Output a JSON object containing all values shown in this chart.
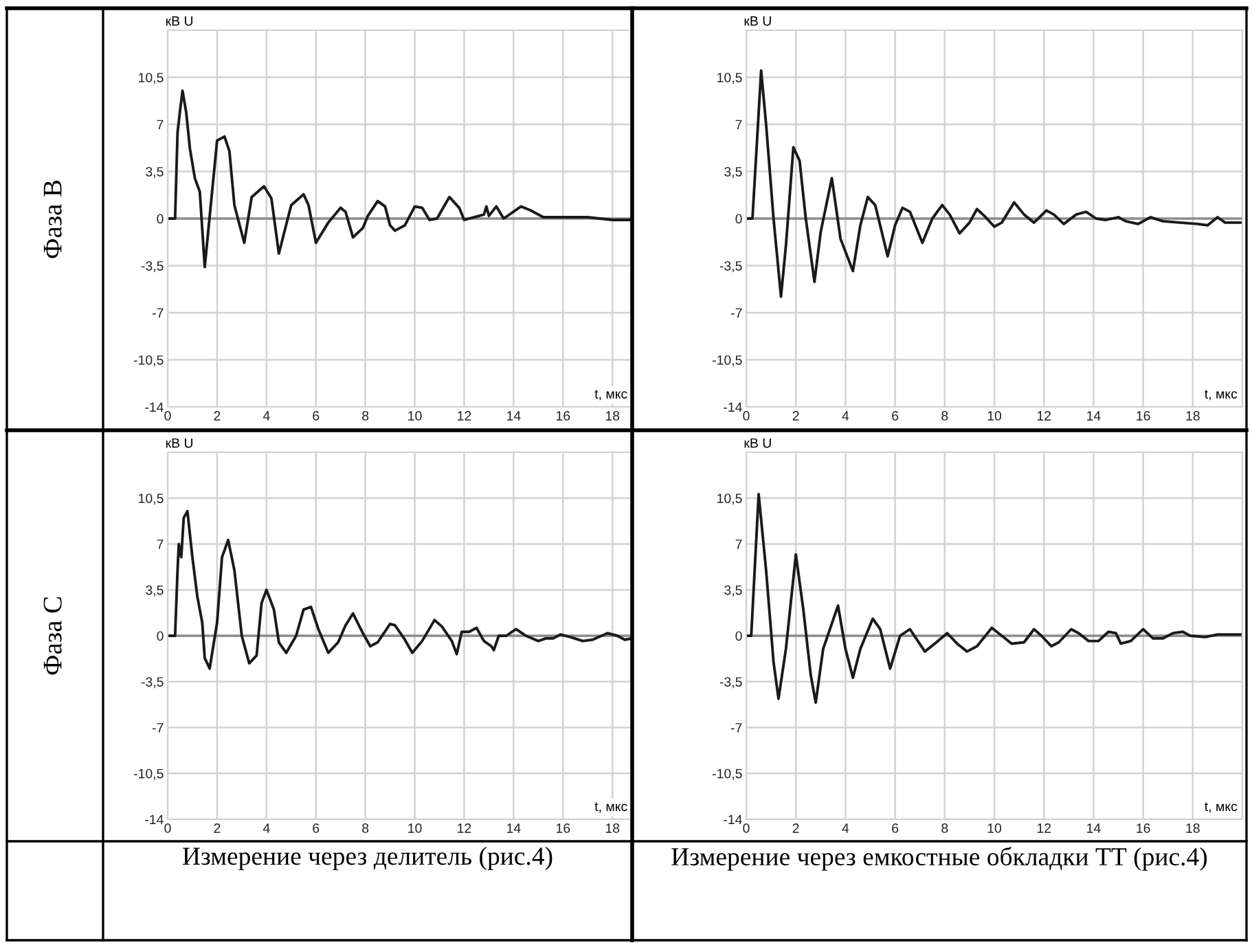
{
  "chart_data": [
    {
      "type": "line",
      "title": "Фаза В",
      "xlabel": "t, мкс",
      "ylabel": "кВ U",
      "color": "#1a1a1a",
      "grid": true,
      "xlim": [
        0,
        18.8
      ],
      "ylim": [
        -14,
        14
      ],
      "xticks": [
        0,
        2,
        4,
        6,
        8,
        10,
        12,
        14,
        16,
        18
      ],
      "yticks": [
        {
          "value": -14,
          "label": "-14"
        },
        {
          "value": -10.5,
          "label": "-10,5"
        },
        {
          "value": -7,
          "label": "-7"
        },
        {
          "value": -3.5,
          "label": "-3,5"
        },
        0,
        {
          "value": 3.5,
          "label": "3,5"
        },
        7,
        {
          "value": 10.5,
          "label": "10,5"
        }
      ],
      "ref_lines": [
        {
          "axis": "y",
          "value": 0,
          "color": "#8c8c8c"
        }
      ],
      "x": [
        0,
        0.3,
        0.4,
        0.5,
        0.6,
        0.75,
        0.9,
        1.1,
        1.3,
        1.5,
        2.0,
        2.3,
        2.5,
        2.7,
        3.1,
        3.4,
        3.9,
        4.2,
        4.5,
        5.0,
        5.5,
        5.7,
        6.0,
        6.5,
        7.0,
        7.2,
        7.5,
        7.9,
        8.1,
        8.5,
        8.8,
        9.0,
        9.2,
        9.6,
        10,
        10.3,
        10.6,
        10.9,
        11.4,
        11.8,
        12.0,
        12.4,
        12.8,
        12.9,
        13.0,
        13.3,
        13.6,
        14.3,
        14.7,
        15.2,
        16,
        17,
        17.5,
        18,
        18.8
      ],
      "values": [
        0,
        0,
        6.4,
        8,
        9.5,
        7.9,
        5.2,
        3,
        2,
        -3.6,
        5.8,
        6.1,
        5,
        1,
        -1.8,
        1.6,
        2.4,
        1.5,
        -2.6,
        1,
        1.8,
        1,
        -1.8,
        -0.3,
        0.8,
        0.5,
        -1.4,
        -0.7,
        0.2,
        1.3,
        0.9,
        -0.5,
        -0.9,
        -0.5,
        0.9,
        0.8,
        -0.1,
        0,
        1.6,
        0.8,
        -0.1,
        0.1,
        0.3,
        0.9,
        0.2,
        0.9,
        0,
        0.9,
        0.6,
        0.1,
        0.1,
        0.1,
        0,
        -0.1,
        -0.1
      ]
    },
    {
      "type": "line",
      "xlabel": "t, мкс",
      "ylabel": "кВ U",
      "color": "#1a1a1a",
      "grid": true,
      "xlim": [
        0,
        20
      ],
      "ylim": [
        -14,
        14
      ],
      "xticks": [
        0,
        2,
        4,
        6,
        8,
        10,
        12,
        14,
        16,
        18,
        {
          "value": 20,
          "label": null
        }
      ],
      "yticks": [
        {
          "value": -14,
          "label": "-14"
        },
        {
          "value": -10.5,
          "label": "-10,5"
        },
        {
          "value": -7,
          "label": "-7"
        },
        {
          "value": -3.5,
          "label": "-3,5"
        },
        0,
        {
          "value": 3.5,
          "label": "3,5"
        },
        7,
        {
          "value": 10.5,
          "label": "10,5"
        }
      ],
      "ref_lines": [
        {
          "axis": "y",
          "value": 0,
          "color": "#8c8c8c"
        }
      ],
      "x": [
        0,
        0.25,
        0.6,
        0.8,
        1.1,
        1.4,
        1.6,
        1.9,
        2.15,
        2.4,
        2.75,
        3.0,
        3.45,
        3.8,
        4.3,
        4.6,
        4.9,
        5.2,
        5.7,
        6.0,
        6.3,
        6.6,
        7.1,
        7.5,
        7.9,
        8.2,
        8.6,
        9.0,
        9.3,
        9.6,
        10.0,
        10.3,
        10.8,
        11.2,
        11.6,
        12.1,
        12.4,
        12.8,
        13.3,
        13.7,
        14.1,
        14.5,
        15.0,
        15.3,
        15.8,
        16.3,
        16.8,
        17.5,
        18.2,
        18.6,
        19.0,
        19.3,
        20
      ],
      "values": [
        0,
        0,
        11,
        7,
        0,
        -5.8,
        -2,
        5.3,
        4.3,
        0,
        -4.7,
        -1,
        3,
        -1.5,
        -3.9,
        -0.5,
        1.6,
        1,
        -2.8,
        -0.5,
        0.8,
        0.5,
        -1.8,
        0,
        1,
        0.3,
        -1.1,
        -0.3,
        0.7,
        0.2,
        -0.6,
        -0.3,
        1.2,
        0.3,
        -0.3,
        0.6,
        0.3,
        -0.4,
        0.3,
        0.5,
        0,
        -0.1,
        0.1,
        -0.2,
        -0.4,
        0.1,
        -0.2,
        -0.3,
        -0.4,
        -0.5,
        0.1,
        -0.3,
        -0.3
      ]
    },
    {
      "type": "line",
      "title": "Фаза С",
      "xlabel": "t, мкс",
      "ylabel": "кВ U",
      "color": "#1a1a1a",
      "grid": true,
      "xlim": [
        0,
        18.8
      ],
      "ylim": [
        -14,
        14
      ],
      "xticks": [
        0,
        2,
        4,
        6,
        8,
        10,
        12,
        14,
        16,
        18
      ],
      "yticks": [
        {
          "value": -14,
          "label": "-14"
        },
        {
          "value": -10.5,
          "label": "-10,5"
        },
        {
          "value": -7,
          "label": "-7"
        },
        {
          "value": -3.5,
          "label": "-3,5"
        },
        0,
        {
          "value": 3.5,
          "label": "3,5"
        },
        7,
        {
          "value": 10.5,
          "label": "10,5"
        }
      ],
      "ref_lines": [
        {
          "axis": "y",
          "value": 0,
          "color": "#8c8c8c"
        }
      ],
      "annotations": [
        "Измерение через делитель (рис.4)"
      ],
      "x": [
        0,
        0.3,
        0.4,
        0.45,
        0.55,
        0.65,
        0.8,
        1.0,
        1.2,
        1.4,
        1.5,
        1.7,
        2.0,
        2.2,
        2.45,
        2.7,
        3.0,
        3.3,
        3.6,
        3.8,
        4.0,
        4.3,
        4.5,
        4.8,
        5.2,
        5.5,
        5.8,
        6.1,
        6.5,
        6.9,
        7.2,
        7.5,
        7.9,
        8.2,
        8.5,
        9.0,
        9.2,
        9.6,
        9.9,
        10.3,
        10.8,
        11.1,
        11.5,
        11.7,
        11.9,
        12.2,
        12.5,
        12.8,
        13.1,
        13.2,
        13.4,
        13.7,
        14.1,
        14.5,
        15.0,
        15.3,
        15.6,
        15.9,
        16.3,
        16.8,
        17.2,
        17.8,
        18.2,
        18.5,
        18.8
      ],
      "values": [
        0,
        0,
        5,
        7,
        6,
        9,
        9.5,
        6,
        3,
        1,
        -1.7,
        -2.5,
        1,
        6,
        7.3,
        5,
        0,
        -2.1,
        -1.5,
        2.5,
        3.5,
        2,
        -0.5,
        -1.3,
        0,
        2,
        2.2,
        0.5,
        -1.3,
        -0.5,
        0.8,
        1.7,
        0.2,
        -0.8,
        -0.5,
        0.9,
        0.8,
        -0.3,
        -1.3,
        -0.4,
        1.2,
        0.7,
        -0.4,
        -1.4,
        0.3,
        0.3,
        0.6,
        -0.4,
        -0.8,
        -1.1,
        0,
        0,
        0.5,
        0,
        -0.4,
        -0.2,
        -0.2,
        0.1,
        -0.1,
        -0.4,
        -0.3,
        0.2,
        0,
        -0.3,
        -0.2
      ]
    },
    {
      "type": "line",
      "xlabel": "t, мкс",
      "ylabel": "кВ U",
      "color": "#1a1a1a",
      "grid": true,
      "xlim": [
        0,
        20
      ],
      "ylim": [
        -14,
        14
      ],
      "xticks": [
        0,
        2,
        4,
        6,
        8,
        10,
        12,
        14,
        16,
        18,
        {
          "value": 20,
          "label": null
        }
      ],
      "yticks": [
        {
          "value": -14,
          "label": "-14"
        },
        {
          "value": -10.5,
          "label": "-10,5"
        },
        {
          "value": -7,
          "label": "-7"
        },
        {
          "value": -3.5,
          "label": "-3,5"
        },
        0,
        {
          "value": 3.5,
          "label": "3,5"
        },
        7,
        {
          "value": 10.5,
          "label": "10,5"
        }
      ],
      "ref_lines": [
        {
          "axis": "y",
          "value": 0,
          "color": "#8c8c8c"
        }
      ],
      "annotations": [
        "Измерение через емкостные обкладки ТТ (рис.4)"
      ],
      "x": [
        0,
        0.2,
        0.5,
        0.8,
        1.1,
        1.3,
        1.6,
        2.0,
        2.3,
        2.6,
        2.8,
        3.1,
        3.7,
        4.0,
        4.3,
        4.6,
        5.1,
        5.4,
        5.8,
        6.2,
        6.6,
        7.2,
        7.6,
        8.1,
        8.5,
        8.9,
        9.3,
        9.9,
        10.3,
        10.7,
        11.2,
        11.6,
        11.9,
        12.3,
        12.6,
        13.1,
        13.4,
        13.8,
        14.2,
        14.6,
        14.9,
        15.1,
        15.5,
        16.0,
        16.4,
        16.8,
        17.2,
        17.6,
        17.9,
        18.5,
        19.0,
        20
      ],
      "values": [
        0,
        0,
        10.8,
        5,
        -2,
        -4.8,
        -1,
        6.2,
        2,
        -3,
        -5.1,
        -1,
        2.3,
        -1,
        -3.2,
        -1,
        1.3,
        0.5,
        -2.5,
        0,
        0.5,
        -1.2,
        -0.6,
        0.2,
        -0.6,
        -1.2,
        -0.8,
        0.6,
        0,
        -0.6,
        -0.5,
        0.5,
        0,
        -0.8,
        -0.5,
        0.5,
        0.2,
        -0.4,
        -0.4,
        0.3,
        0.2,
        -0.6,
        -0.4,
        0.5,
        -0.2,
        -0.2,
        0.2,
        0.3,
        0,
        -0.1,
        0.1,
        0.1
      ]
    }
  ]
}
